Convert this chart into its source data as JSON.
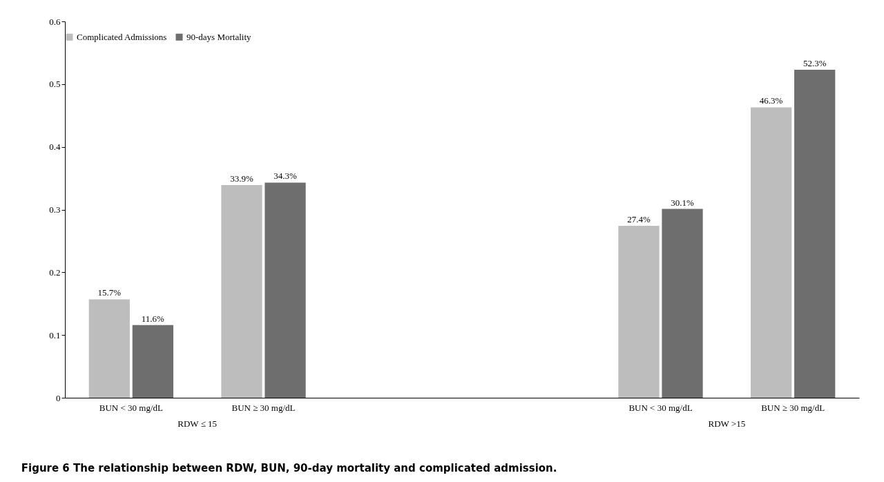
{
  "chart_data": {
    "type": "bar",
    "title": "Figure 6 The relationship between RDW, BUN, 90-day mortality and complicated admission.",
    "categories": [
      "BUN < 30 mg/dL",
      "BUN ≥ 30 mg/dL",
      null,
      null,
      "BUN < 30 mg/dL",
      "BUN ≥ 30 mg/dL"
    ],
    "series": [
      {
        "name": "Complicated Admissions",
        "color": "#bdbdbd",
        "values": [
          0.157,
          0.339,
          null,
          null,
          0.274,
          0.463
        ],
        "value_labels": [
          "15.7%",
          "33.9%",
          null,
          null,
          "27.4%",
          "46.3%"
        ]
      },
      {
        "name": "90-days Mortality",
        "color": "#6e6e6e",
        "values": [
          0.116,
          0.343,
          null,
          null,
          0.301,
          0.523
        ],
        "value_labels": [
          "11.6%",
          "34.3%",
          null,
          null,
          "30.1%",
          "52.3%"
        ]
      }
    ],
    "ylim": [
      0,
      0.6
    ],
    "yticks": [
      0,
      0.1,
      0.2,
      0.3,
      0.4,
      0.5,
      0.6
    ],
    "grid": false,
    "legend": "top",
    "annotations": [
      "RDW ≤ 15",
      "RDW >15"
    ]
  }
}
